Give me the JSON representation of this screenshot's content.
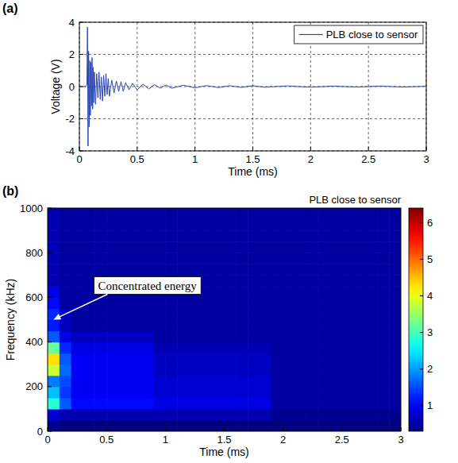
{
  "chart_data": [
    {
      "type": "line",
      "panel_label": "(a)",
      "xlabel": "Time (ms)",
      "ylabel": "Voltage (V)",
      "xlim": [
        0,
        3
      ],
      "ylim": [
        -4,
        4
      ],
      "xticks": [
        0,
        0.5,
        1,
        1.5,
        2,
        2.5,
        3
      ],
      "yticks": [
        -4,
        -2,
        0,
        2,
        4
      ],
      "grid": true,
      "legend": "upper right",
      "x": [
        0,
        0.05,
        0.065,
        0.07,
        0.075,
        0.08,
        0.085,
        0.09,
        0.095,
        0.1,
        0.105,
        0.11,
        0.115,
        0.12,
        0.125,
        0.13,
        0.14,
        0.15,
        0.16,
        0.17,
        0.18,
        0.19,
        0.2,
        0.21,
        0.22,
        0.23,
        0.24,
        0.25,
        0.26,
        0.28,
        0.3,
        0.32,
        0.34,
        0.36,
        0.38,
        0.4,
        0.43,
        0.46,
        0.5,
        0.55,
        0.6,
        0.65,
        0.7,
        0.75,
        0.8,
        0.9,
        1.0,
        1.1,
        1.2,
        1.3,
        1.4,
        1.5,
        1.6,
        1.8,
        2.0,
        2.2,
        2.4,
        2.6,
        2.8,
        3.0
      ],
      "series": [
        {
          "name": "PLB close to sensor",
          "color": "#2a45b8",
          "values": [
            0,
            0,
            0.1,
            3.7,
            -3.7,
            2.2,
            -2.5,
            1.6,
            -1.8,
            1.5,
            -1.2,
            1.8,
            -1.4,
            1.2,
            -1.0,
            0.9,
            -1.1,
            0.8,
            -0.7,
            0.9,
            -0.8,
            0.6,
            -0.9,
            0.7,
            -0.6,
            0.8,
            -0.5,
            0.5,
            -0.6,
            0.4,
            -0.4,
            0.35,
            -0.3,
            0.3,
            -0.3,
            0.25,
            -0.2,
            0.2,
            -0.2,
            0.15,
            -0.15,
            0.12,
            -0.1,
            0.1,
            -0.1,
            0.08,
            -0.08,
            0.06,
            -0.06,
            0.05,
            -0.05,
            0.05,
            -0.04,
            0.04,
            -0.04,
            0.03,
            -0.03,
            0.03,
            -0.03,
            0.02
          ]
        }
      ]
    },
    {
      "type": "heatmap",
      "panel_label": "(b)",
      "title": "PLB close to sensor",
      "xlabel": "Time (ms)",
      "ylabel": "Frequency (kHz)",
      "xlim": [
        0,
        3
      ],
      "ylim": [
        0,
        1000
      ],
      "xticks": [
        0,
        0.5,
        1,
        1.5,
        2,
        2.5,
        3
      ],
      "yticks": [
        0,
        200,
        400,
        600,
        800,
        1000
      ],
      "x_bins": [
        0,
        0.1,
        0.2,
        0.3,
        0.4,
        0.5,
        0.6,
        0.7,
        0.8,
        0.9,
        1.0,
        1.1,
        1.2,
        1.3,
        1.4,
        1.5,
        1.6,
        1.7,
        1.8,
        1.9,
        2.0,
        2.1,
        2.2,
        2.3,
        2.4,
        2.5,
        2.6,
        2.7,
        2.8,
        2.9,
        3.0
      ],
      "y_bins": [
        0,
        50,
        100,
        150,
        200,
        250,
        300,
        350,
        400,
        450,
        500,
        550,
        600,
        650,
        700,
        750,
        800,
        850,
        900,
        950,
        1000
      ],
      "z": [
        [
          0.4,
          0.3,
          0.3,
          0.3,
          0.3,
          0.3,
          0.3,
          0.3,
          0.3,
          0.3,
          0.3,
          0.3,
          0.3,
          0.3,
          0.3,
          0.3,
          0.3,
          0.3,
          0.3,
          0.3,
          0.3,
          0.3,
          0.3,
          0.3,
          0.3,
          0.3,
          0.3,
          0.3,
          0.3,
          0.3
        ],
        [
          0.8,
          0.6,
          0.6,
          0.6,
          0.6,
          0.6,
          0.6,
          0.6,
          0.6,
          0.6,
          0.6,
          0.6,
          0.6,
          0.6,
          0.6,
          0.6,
          0.6,
          0.6,
          0.6,
          0.4,
          0.4,
          0.4,
          0.4,
          0.4,
          0.4,
          0.4,
          0.4,
          0.4,
          0.4,
          0.4
        ],
        [
          2.8,
          1.6,
          1.1,
          1.1,
          1.1,
          1.1,
          1.1,
          1.1,
          1.1,
          0.9,
          0.9,
          0.9,
          0.9,
          0.9,
          0.9,
          0.9,
          0.9,
          0.9,
          0.9,
          0.5,
          0.5,
          0.5,
          0.5,
          0.5,
          0.5,
          0.5,
          0.5,
          0.5,
          0.5,
          0.5
        ],
        [
          2.2,
          1.4,
          1.0,
          1.0,
          1.0,
          1.0,
          1.0,
          1.0,
          1.0,
          0.8,
          0.8,
          0.8,
          0.8,
          0.8,
          0.8,
          0.8,
          0.8,
          0.8,
          0.8,
          0.5,
          0.5,
          0.5,
          0.5,
          0.5,
          0.5,
          0.5,
          0.5,
          0.5,
          0.5,
          0.5
        ],
        [
          1.8,
          1.5,
          1.0,
          1.0,
          1.0,
          1.0,
          1.0,
          1.0,
          1.0,
          0.8,
          0.8,
          0.8,
          0.8,
          0.8,
          0.8,
          0.8,
          0.8,
          0.8,
          0.8,
          0.5,
          0.5,
          0.5,
          0.5,
          0.5,
          0.5,
          0.5,
          0.5,
          0.5,
          0.5,
          0.5
        ],
        [
          3.8,
          1.7,
          1.0,
          1.0,
          1.0,
          1.0,
          1.0,
          1.0,
          1.0,
          0.7,
          0.7,
          0.7,
          0.7,
          0.7,
          0.7,
          0.7,
          0.7,
          0.7,
          0.7,
          0.5,
          0.5,
          0.5,
          0.5,
          0.5,
          0.5,
          0.5,
          0.5,
          0.5,
          0.5,
          0.5
        ],
        [
          4.3,
          1.6,
          1.0,
          1.0,
          1.0,
          1.0,
          1.0,
          1.0,
          1.0,
          0.7,
          0.7,
          0.7,
          0.7,
          0.7,
          0.7,
          0.7,
          0.7,
          0.7,
          0.7,
          0.5,
          0.5,
          0.5,
          0.5,
          0.5,
          0.5,
          0.5,
          0.5,
          0.5,
          0.5,
          0.5
        ],
        [
          3.2,
          1.3,
          0.9,
          0.9,
          0.9,
          0.9,
          0.9,
          0.9,
          0.9,
          0.6,
          0.6,
          0.6,
          0.6,
          0.6,
          0.6,
          0.6,
          0.6,
          0.6,
          0.6,
          0.5,
          0.5,
          0.5,
          0.5,
          0.5,
          0.5,
          0.5,
          0.5,
          0.5,
          0.5,
          0.5
        ],
        [
          1.6,
          0.9,
          0.7,
          0.7,
          0.7,
          0.7,
          0.7,
          0.7,
          0.7,
          0.5,
          0.5,
          0.5,
          0.5,
          0.5,
          0.5,
          0.5,
          0.5,
          0.5,
          0.5,
          0.5,
          0.5,
          0.5,
          0.5,
          0.5,
          0.5,
          0.5,
          0.5,
          0.5,
          0.5,
          0.5
        ],
        [
          1.2,
          0.7,
          0.5,
          0.5,
          0.5,
          0.5,
          0.5,
          0.5,
          0.5,
          0.5,
          0.5,
          0.5,
          0.5,
          0.5,
          0.5,
          0.5,
          0.5,
          0.5,
          0.5,
          0.5,
          0.5,
          0.5,
          0.5,
          0.5,
          0.5,
          0.5,
          0.5,
          0.5,
          0.5,
          0.5
        ],
        [
          1.3,
          0.7,
          0.5,
          0.5,
          0.5,
          0.5,
          0.5,
          0.5,
          0.5,
          0.5,
          0.5,
          0.5,
          0.5,
          0.5,
          0.5,
          0.5,
          0.5,
          0.5,
          0.5,
          0.5,
          0.5,
          0.5,
          0.5,
          0.5,
          0.5,
          0.5,
          0.5,
          0.5,
          0.5,
          0.5
        ],
        [
          1.1,
          0.5,
          0.5,
          0.5,
          0.5,
          0.5,
          0.5,
          0.5,
          0.5,
          0.5,
          0.5,
          0.5,
          0.5,
          0.5,
          0.5,
          0.5,
          0.5,
          0.5,
          0.5,
          0.5,
          0.5,
          0.5,
          0.5,
          0.5,
          0.5,
          0.5,
          0.5,
          0.5,
          0.5,
          0.5
        ],
        [
          0.9,
          0.5,
          0.5,
          0.5,
          0.5,
          0.5,
          0.5,
          0.5,
          0.5,
          0.5,
          0.5,
          0.5,
          0.5,
          0.5,
          0.5,
          0.5,
          0.5,
          0.5,
          0.5,
          0.5,
          0.5,
          0.5,
          0.5,
          0.5,
          0.5,
          0.5,
          0.5,
          0.5,
          0.5,
          0.5
        ],
        [
          0.6,
          0.5,
          0.5,
          0.5,
          0.5,
          0.5,
          0.5,
          0.5,
          0.5,
          0.5,
          0.5,
          0.5,
          0.5,
          0.5,
          0.5,
          0.5,
          0.5,
          0.5,
          0.5,
          0.5,
          0.5,
          0.5,
          0.5,
          0.5,
          0.5,
          0.5,
          0.5,
          0.5,
          0.5,
          0.5
        ],
        [
          0.6,
          0.5,
          0.5,
          0.5,
          0.5,
          0.5,
          0.5,
          0.5,
          0.5,
          0.5,
          0.5,
          0.5,
          0.5,
          0.5,
          0.5,
          0.5,
          0.5,
          0.5,
          0.5,
          0.5,
          0.5,
          0.5,
          0.5,
          0.5,
          0.5,
          0.5,
          0.5,
          0.5,
          0.5,
          0.5
        ],
        [
          0.6,
          0.5,
          0.5,
          0.5,
          0.5,
          0.5,
          0.5,
          0.5,
          0.5,
          0.5,
          0.5,
          0.5,
          0.5,
          0.5,
          0.5,
          0.5,
          0.5,
          0.5,
          0.5,
          0.5,
          0.5,
          0.5,
          0.5,
          0.5,
          0.5,
          0.5,
          0.5,
          0.5,
          0.5,
          0.5
        ],
        [
          0.6,
          0.5,
          0.5,
          0.5,
          0.5,
          0.5,
          0.5,
          0.5,
          0.5,
          0.5,
          0.5,
          0.5,
          0.5,
          0.5,
          0.5,
          0.5,
          0.5,
          0.5,
          0.5,
          0.5,
          0.5,
          0.5,
          0.5,
          0.5,
          0.5,
          0.5,
          0.5,
          0.5,
          0.5,
          0.5
        ],
        [
          0.6,
          0.5,
          0.5,
          0.5,
          0.5,
          0.5,
          0.5,
          0.5,
          0.5,
          0.5,
          0.5,
          0.5,
          0.5,
          0.5,
          0.5,
          0.5,
          0.5,
          0.5,
          0.5,
          0.5,
          0.5,
          0.5,
          0.5,
          0.5,
          0.5,
          0.5,
          0.5,
          0.5,
          0.5,
          0.5
        ],
        [
          0.6,
          0.5,
          0.5,
          0.5,
          0.5,
          0.5,
          0.5,
          0.5,
          0.5,
          0.5,
          0.5,
          0.5,
          0.5,
          0.5,
          0.5,
          0.5,
          0.5,
          0.5,
          0.5,
          0.5,
          0.5,
          0.5,
          0.5,
          0.5,
          0.5,
          0.5,
          0.5,
          0.5,
          0.5,
          0.5
        ],
        [
          0.6,
          0.5,
          0.5,
          0.5,
          0.5,
          0.5,
          0.5,
          0.5,
          0.5,
          0.5,
          0.5,
          0.5,
          0.5,
          0.5,
          0.5,
          0.5,
          0.5,
          0.5,
          0.5,
          0.5,
          0.5,
          0.5,
          0.5,
          0.5,
          0.5,
          0.5,
          0.5,
          0.5,
          0.5,
          0.5
        ]
      ],
      "colorbar_range": [
        0.3,
        6.4
      ],
      "colorbar_ticks": [
        1,
        2,
        3,
        4,
        5,
        6
      ],
      "annotations": [
        {
          "text": "Concentrated energy",
          "x": 0.05,
          "y": 500
        }
      ]
    }
  ]
}
